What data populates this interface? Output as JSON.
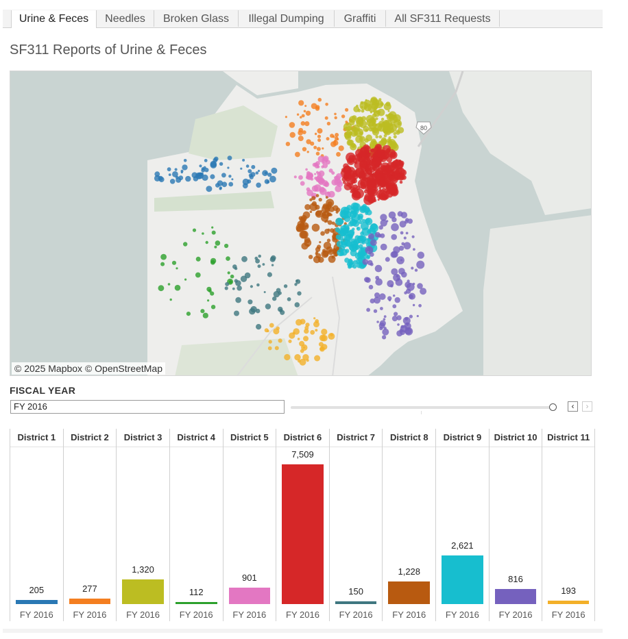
{
  "tabs": [
    {
      "label": "Urine & Feces",
      "active": true
    },
    {
      "label": "Needles",
      "active": false
    },
    {
      "label": "Broken Glass",
      "active": false
    },
    {
      "label": "Illegal Dumping",
      "active": false
    },
    {
      "label": "Graffiti",
      "active": false
    },
    {
      "label": "All SF311 Requests",
      "active": false
    }
  ],
  "page_title": "SF311 Reports of Urine & Feces",
  "map": {
    "attribution_mapbox": "© 2025 Mapbox",
    "attribution_osm": "© OpenStreetMap",
    "highway_shield": "80"
  },
  "filter": {
    "label": "FISCAL YEAR",
    "selected": "FY 2016",
    "prev_icon": "‹",
    "next_icon": "›"
  },
  "colors": {
    "d1": "#2a78b4",
    "d2": "#f47e20",
    "d3": "#bcbd22",
    "d4": "#2ca02c",
    "d5": "#e377c2",
    "d6": "#d62728",
    "d7": "#3f7780",
    "d8": "#b85a10",
    "d9": "#17becf",
    "d10": "#7561be",
    "d11": "#f3b029"
  },
  "chart_data": {
    "type": "bar",
    "title": "SF311 Reports of Urine & Feces",
    "categories": [
      "District 1",
      "District 2",
      "District 3",
      "District 4",
      "District 5",
      "District 6",
      "District 7",
      "District 8",
      "District 9",
      "District 10",
      "District 11"
    ],
    "x_label_each": "FY 2016",
    "values": [
      205,
      277,
      1320,
      112,
      901,
      7509,
      150,
      1228,
      2621,
      816,
      193
    ],
    "value_labels": [
      "205",
      "277",
      "1,320",
      "112",
      "901",
      "7,509",
      "150",
      "1,228",
      "2,621",
      "816",
      "193"
    ],
    "ylim": [
      0,
      7509
    ],
    "bar_colors": [
      "#2a78b4",
      "#f47e20",
      "#bcbd22",
      "#2ca02c",
      "#e377c2",
      "#d62728",
      "#3f7780",
      "#b85a10",
      "#17becf",
      "#7561be",
      "#f3b029"
    ]
  }
}
